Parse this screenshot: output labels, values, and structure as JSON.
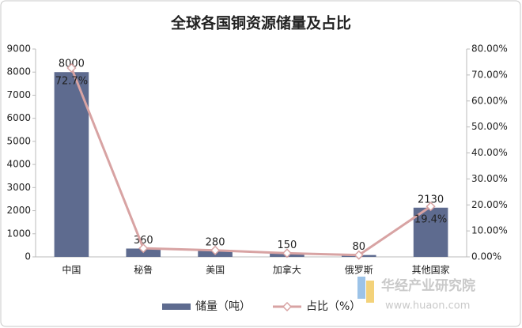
{
  "chart_data": {
    "type": "combo",
    "title": "全球各国铜资源储量及占比",
    "categories": [
      "中国",
      "秘鲁",
      "美国",
      "加拿大",
      "俄罗斯",
      "其他国家"
    ],
    "series": [
      {
        "name": "储量（吨）",
        "type": "bar",
        "color": "#5e6b8f",
        "values": [
          8000,
          360,
          280,
          150,
          80,
          2130
        ]
      },
      {
        "name": "占比（%）",
        "type": "line",
        "axis": "y2",
        "color": "#d8a3a3",
        "values": [
          72.7,
          3.3,
          2.5,
          1.4,
          0.7,
          19.4
        ],
        "value_labels": [
          "72.7%",
          null,
          null,
          null,
          null,
          "19.4%"
        ]
      }
    ],
    "ylim": [
      0,
      9000
    ],
    "yticks": [
      0,
      1000,
      2000,
      3000,
      4000,
      5000,
      6000,
      7000,
      8000,
      9000
    ],
    "y2lim": [
      0,
      80
    ],
    "y2ticks": [
      {
        "value": 0,
        "label": "0.00%"
      },
      {
        "value": 10,
        "label": "10.00%"
      },
      {
        "value": 20,
        "label": "20.00%"
      },
      {
        "value": 30,
        "label": "30.00%"
      },
      {
        "value": 40,
        "label": "40.00%"
      },
      {
        "value": 50,
        "label": "50.00%"
      },
      {
        "value": 60,
        "label": "60.00%"
      },
      {
        "value": 70,
        "label": "70.00%"
      },
      {
        "value": 80,
        "label": "80.00%"
      }
    ],
    "grid": false,
    "legend": "bottom"
  },
  "watermark": {
    "name": "华经产业研究院",
    "url": "www.huaon.com"
  }
}
